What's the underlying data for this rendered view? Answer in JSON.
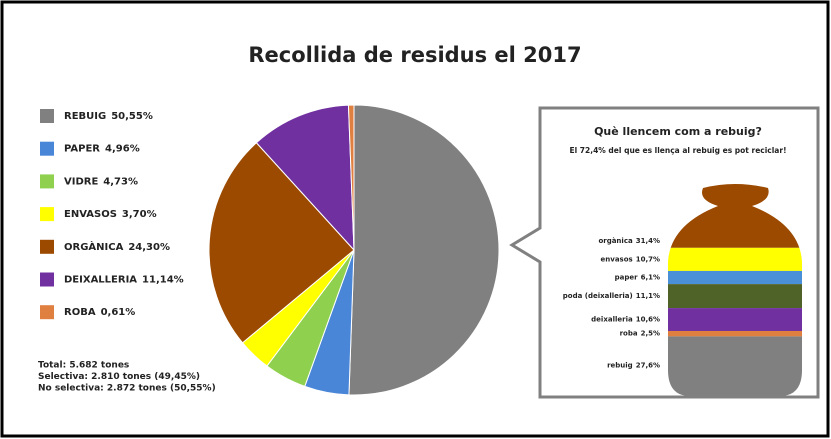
{
  "chart_data": [
    {
      "type": "pie",
      "title": "Recollida de residus el 2017",
      "categories": [
        "REBUIG",
        "PAPER",
        "VIDRE",
        "ENVASOS",
        "ORGÀNICA",
        "DEIXALLERIA",
        "ROBA"
      ],
      "values": [
        50.55,
        4.96,
        4.73,
        3.7,
        24.3,
        11.14,
        0.61
      ],
      "value_labels": [
        "50,55%",
        "4,96%",
        "4,73%",
        "3,70%",
        "24,30%",
        "11,14%",
        "0,61%"
      ],
      "colors": [
        "#808080",
        "#4a86d8",
        "#8fd14f",
        "#ffff00",
        "#9c4a00",
        "#7030a0",
        "#e08040"
      ],
      "annotations": [
        "Total: 5.682 tones",
        "Selectiva: 2.810 tones (49,45%)",
        "No selectiva: 2.872 tones (50,55%)"
      ]
    },
    {
      "type": "sack",
      "title": "Què llencem com a rebuig?",
      "subtitle": "El 72,4% del que es llença al rebuig es pot reciclar!",
      "categories": [
        "orgànica",
        "envasos",
        "paper",
        "poda (deixalleria)",
        "deixalleria",
        "roba",
        "rebuig"
      ],
      "values": [
        31.4,
        10.7,
        6.1,
        11.1,
        10.6,
        2.5,
        27.6
      ],
      "value_labels": [
        "31,4%",
        "10,7%",
        "6,1%",
        "11,1%",
        "10,6%",
        "2,5%",
        "27,6%"
      ],
      "colors": [
        "#9c4a00",
        "#ffff00",
        "#4a90d9",
        "#4f6228",
        "#7030a0",
        "#e08040",
        "#808080"
      ]
    }
  ]
}
